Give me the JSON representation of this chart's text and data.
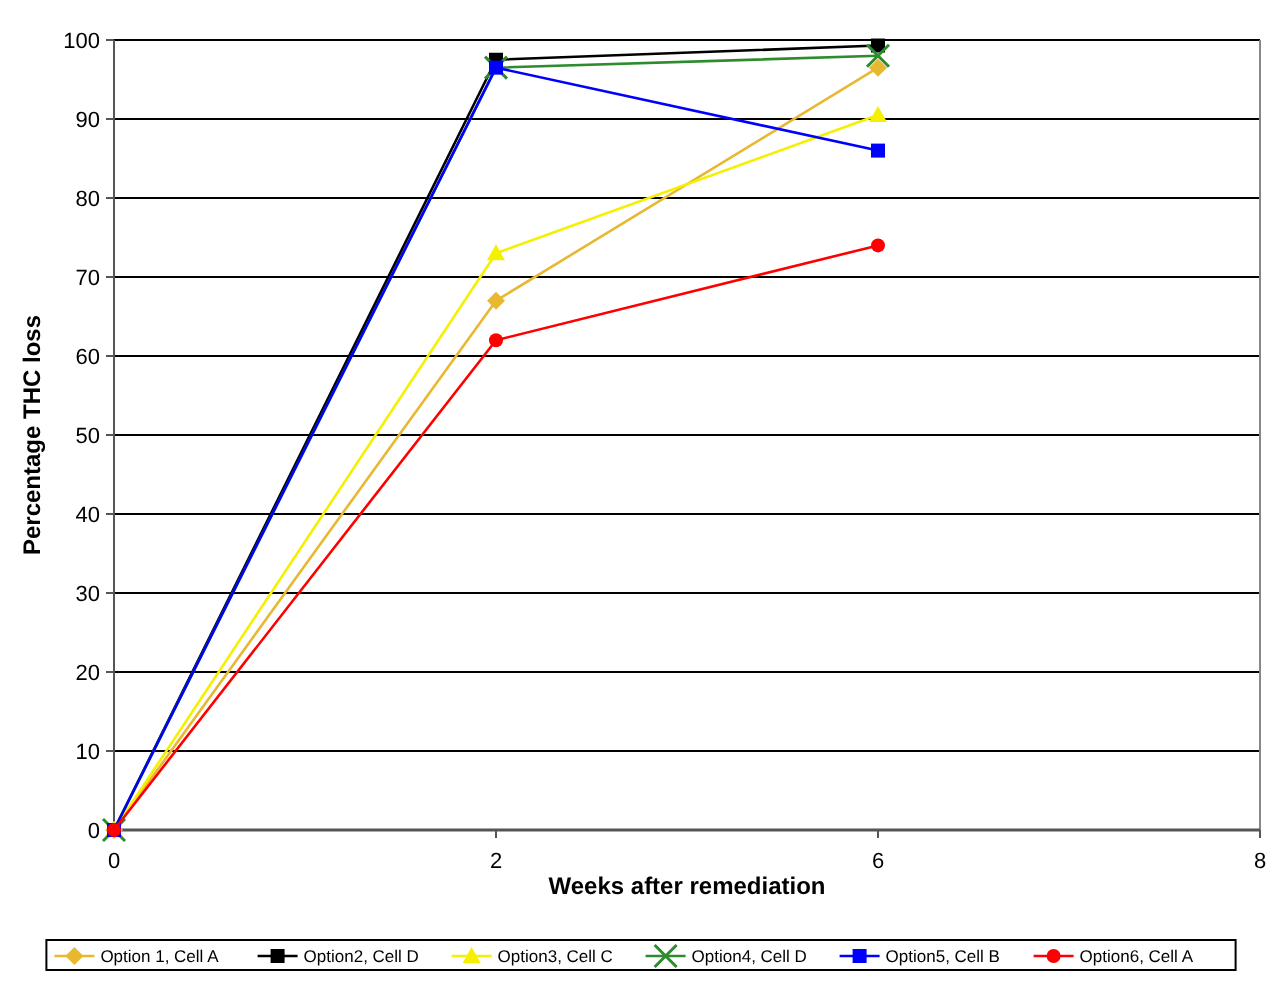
{
  "chart_data": {
    "type": "line",
    "xlabel": "Weeks after remediation",
    "ylabel": "Percentage THC loss",
    "categories": [
      "0",
      "2",
      "6",
      "8"
    ],
    "ylim": [
      0,
      100
    ],
    "yticks": [
      0,
      10,
      20,
      30,
      40,
      50,
      60,
      70,
      80,
      90,
      100
    ],
    "grid": "y",
    "legend": "bottom",
    "series": [
      {
        "name": "Option 1, Cell A",
        "color": "#e8b830",
        "marker": "diamond",
        "values": [
          0,
          67,
          96.5,
          null
        ]
      },
      {
        "name": "Option2, Cell D",
        "color": "#000000",
        "marker": "square",
        "values": [
          0,
          97.5,
          99.3,
          null
        ]
      },
      {
        "name": "Option3, Cell C",
        "color": "#f5f000",
        "marker": "triangle",
        "values": [
          0,
          73,
          90.5,
          null
        ]
      },
      {
        "name": "Option4, Cell D",
        "color": "#2e8b2e",
        "marker": "cross",
        "values": [
          0,
          96.5,
          98,
          null
        ]
      },
      {
        "name": "Option5, Cell B",
        "color": "#0000ff",
        "marker": "square",
        "values": [
          0,
          96.5,
          86,
          null
        ]
      },
      {
        "name": "Option6, Cell A",
        "color": "#ff0000",
        "marker": "circle",
        "values": [
          0,
          62,
          74,
          null
        ]
      }
    ]
  }
}
